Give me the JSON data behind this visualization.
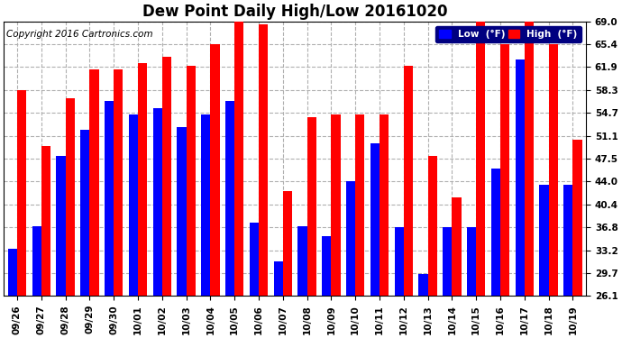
{
  "title": "Dew Point Daily High/Low 20161020",
  "copyright": "Copyright 2016 Cartronics.com",
  "dates": [
    "09/26",
    "09/27",
    "09/28",
    "09/29",
    "09/30",
    "10/01",
    "10/02",
    "10/03",
    "10/04",
    "10/05",
    "10/06",
    "10/07",
    "10/08",
    "10/09",
    "10/10",
    "10/11",
    "10/12",
    "10/13",
    "10/14",
    "10/15",
    "10/16",
    "10/17",
    "10/18",
    "10/19"
  ],
  "low_values": [
    33.5,
    37.0,
    48.0,
    52.0,
    56.5,
    54.5,
    55.5,
    52.5,
    54.5,
    56.5,
    37.5,
    31.5,
    37.0,
    35.5,
    44.0,
    50.0,
    36.8,
    29.5,
    36.8,
    36.8,
    46.0,
    63.0,
    43.5,
    43.5
  ],
  "high_values": [
    58.3,
    49.5,
    57.0,
    61.5,
    61.5,
    62.5,
    63.5,
    62.0,
    65.4,
    69.0,
    68.5,
    42.5,
    54.0,
    54.5,
    54.5,
    54.5,
    62.0,
    48.0,
    41.5,
    69.0,
    65.4,
    69.0,
    65.4,
    50.5
  ],
  "ylim": [
    26.1,
    69.0
  ],
  "yticks": [
    26.1,
    29.7,
    33.2,
    36.8,
    40.4,
    44.0,
    47.5,
    51.1,
    54.7,
    58.3,
    61.9,
    65.4,
    69.0
  ],
  "bar_width": 0.38,
  "low_color": "#0000ff",
  "high_color": "#ff0000",
  "bg_color": "#ffffff",
  "grid_color": "#b0b0b0",
  "title_fontsize": 12,
  "copyright_fontsize": 7.5,
  "tick_fontsize": 7.5,
  "legend_low_label": "Low  (°F)",
  "legend_high_label": "High  (°F)"
}
